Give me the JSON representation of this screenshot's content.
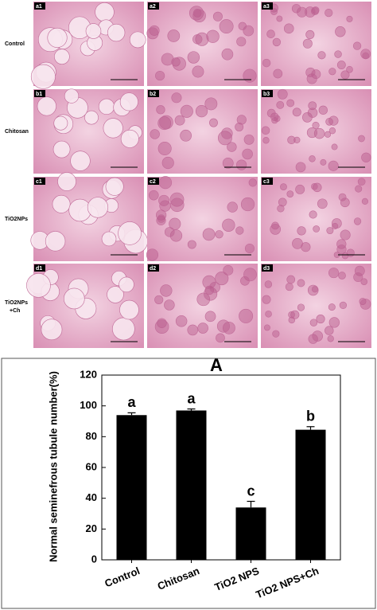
{
  "figure": {
    "rows": [
      {
        "label": "Control",
        "panels": [
          "a1",
          "a2",
          "a3"
        ]
      },
      {
        "label": "Chitosan",
        "panels": [
          "b1",
          "b2",
          "b3"
        ]
      },
      {
        "label": "TiO2NPs",
        "panels": [
          "c1",
          "c2",
          "c3"
        ]
      },
      {
        "label": "TiO2NPs\n+Ch",
        "panels": [
          "d1",
          "d2",
          "d3"
        ]
      }
    ]
  },
  "chart_data": {
    "type": "bar",
    "title": "A",
    "y_label": "Normal seminefrous tubule number(%)",
    "categories": [
      "Control",
      "Chitosan",
      "TiO2 NPS",
      "TiO2 NPS+Ch"
    ],
    "values": [
      94,
      97,
      34,
      84.5
    ],
    "errors": [
      1.5,
      1,
      4,
      2
    ],
    "annotations": [
      "a",
      "a",
      "c",
      "b"
    ],
    "color": "#000000",
    "ylim": [
      0,
      120
    ],
    "yticks": [
      0,
      20,
      40,
      60,
      80,
      100,
      120
    ],
    "grid": false
  }
}
